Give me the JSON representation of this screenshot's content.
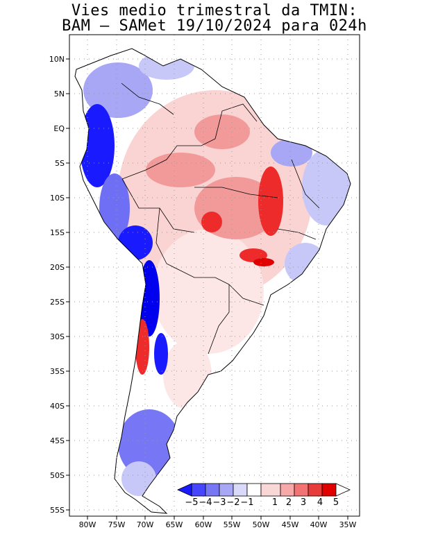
{
  "title": {
    "line1": "Vies medio trimestral da TMIN:",
    "line2": "BAM – SAMet 19/10/2024  para 024h"
  },
  "axes": {
    "lon_labels": [
      "80W",
      "75W",
      "70W",
      "65W",
      "60W",
      "55W",
      "50W",
      "45W",
      "40W",
      "35W"
    ],
    "lat_labels": [
      "10N",
      "5N",
      "EQ",
      "5S",
      "10S",
      "15S",
      "20S",
      "25S",
      "30S",
      "35S",
      "40S",
      "45S",
      "50S",
      "55S"
    ]
  },
  "colorbar": {
    "labels": [
      "−5",
      "−4",
      "−3",
      "−2",
      "−1",
      "1",
      "2",
      "3",
      "4",
      "5"
    ],
    "colors": [
      "#1a1aff",
      "#4646ff",
      "#7777f5",
      "#a7a7f5",
      "#d9d9fa",
      "#ffffff",
      "#fad7d7",
      "#f7a8a8",
      "#f27373",
      "#e83c3c",
      "#e00000"
    ]
  },
  "map": {
    "continent": "South America",
    "variable": "TMIN bias",
    "colors": {
      "strong_cold": "#0000ee",
      "cold": "#6f6ff5",
      "weak_cold": "#c8c8f8",
      "weak_warm": "#fad3d3",
      "warm": "#f29a9a",
      "hot": "#ee2b2b",
      "border": "#000000",
      "grid": "#999999"
    }
  }
}
